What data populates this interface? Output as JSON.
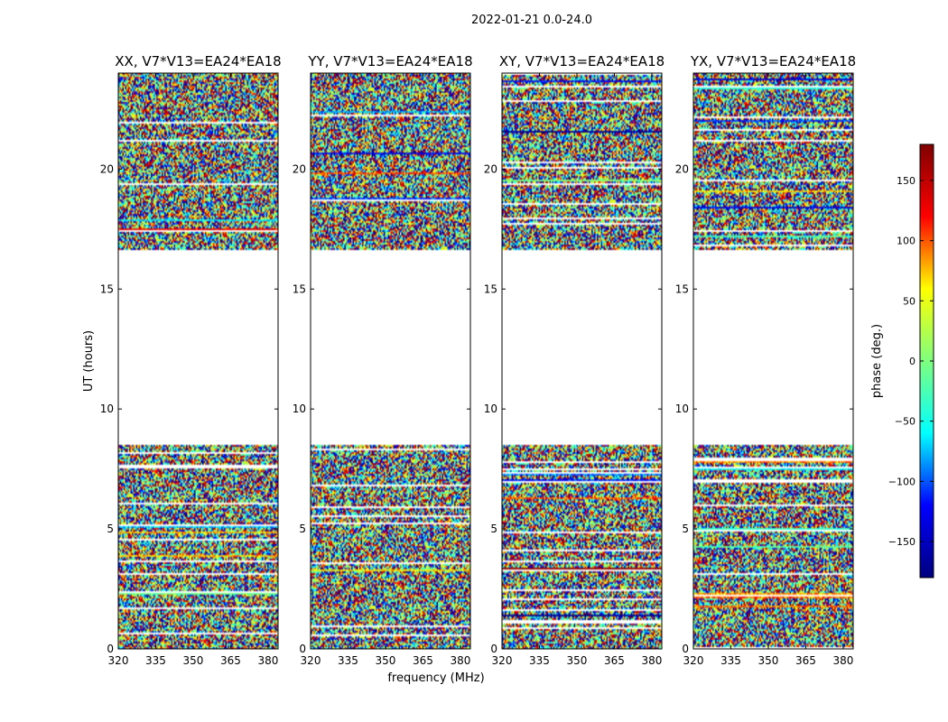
{
  "figure": {
    "suptitle": "2022-01-21 0.0-24.0"
  },
  "chart_data": {
    "type": "heatmap",
    "x_label": "frequency (MHz)",
    "y_label": "UT (hours)",
    "x_ticks": [
      320,
      335,
      350,
      365,
      380
    ],
    "y_ticks": [
      0,
      5,
      10,
      15,
      20
    ],
    "xlim": [
      320,
      384
    ],
    "ylim": [
      0,
      24
    ],
    "panels": [
      {
        "title": "XX, V7*V13=EA24*EA18",
        "show_y_labels": true
      },
      {
        "title": "YY, V7*V13=EA24*EA18",
        "show_y_labels": true
      },
      {
        "title": "XY, V7*V13=EA24*EA18",
        "show_y_labels": true
      },
      {
        "title": "YX, V7*V13=EA24*EA18",
        "show_y_labels": true
      }
    ],
    "data_gap_hours": [
      8.5,
      16.6
    ],
    "colorbar": {
      "label": "phase (deg.)",
      "range": [
        -180,
        180
      ],
      "ticks": [
        -150,
        -100,
        -50,
        0,
        50,
        100,
        150
      ],
      "colormap": [
        "#000080",
        "#0000ff",
        "#00ffff",
        "#7fff7f",
        "#ffff00",
        "#ff0000",
        "#800000"
      ]
    }
  }
}
